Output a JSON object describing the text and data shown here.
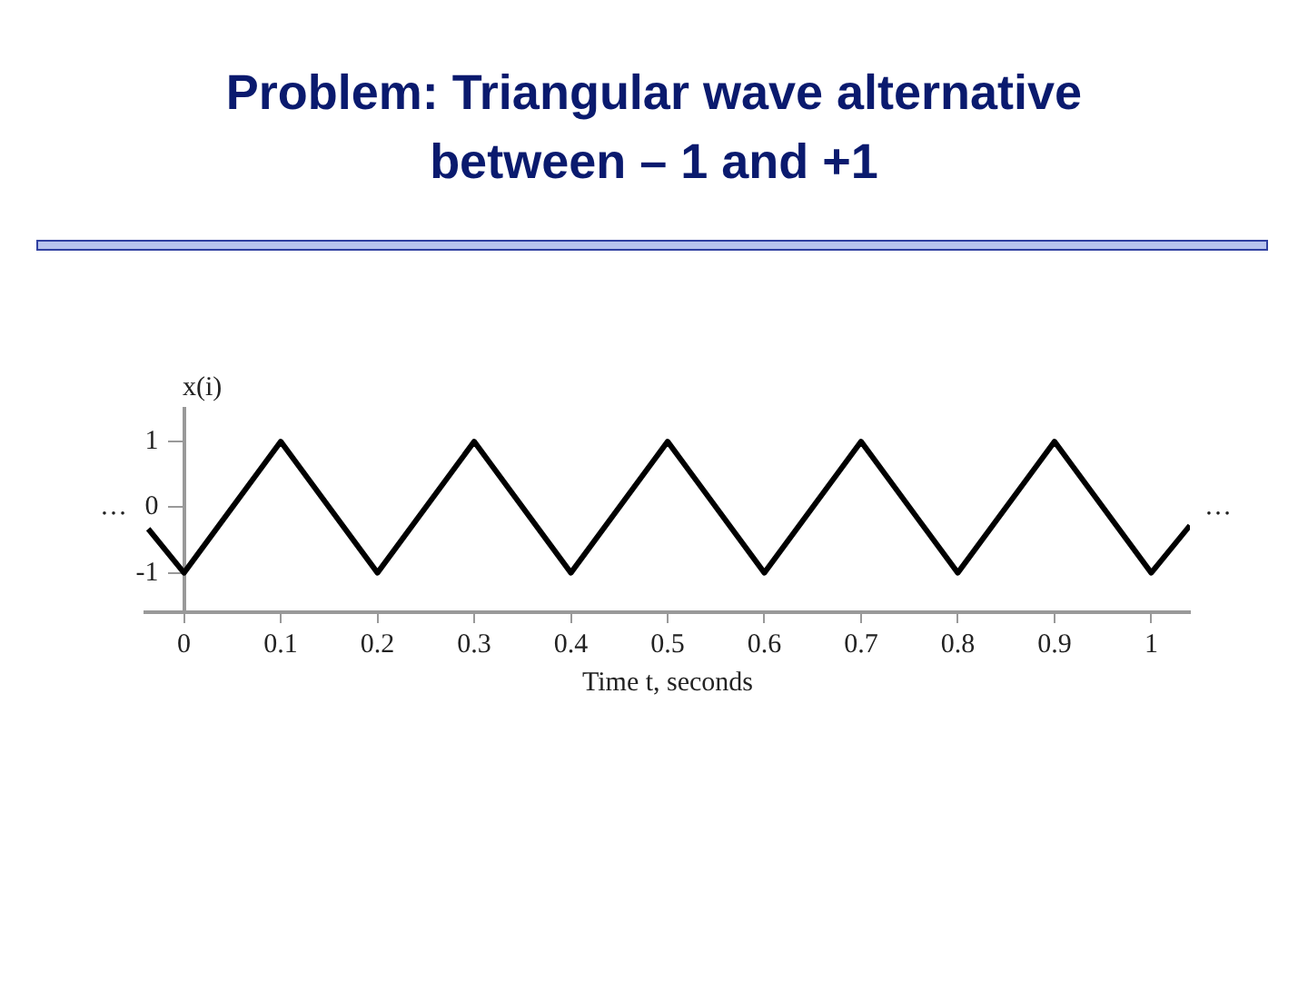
{
  "chart_data": {
    "type": "line",
    "title": "Problem: Triangular wave alternative between – 1 and +1",
    "xlabel": "Time t, seconds",
    "ylabel": "x(i)",
    "x": [
      -0.037,
      0,
      0.1,
      0.2,
      0.3,
      0.4,
      0.5,
      0.6,
      0.7,
      0.8,
      0.9,
      1.0,
      1.04
    ],
    "series": [
      {
        "color": "#000000",
        "values": [
          -0.33,
          -1,
          1,
          -1,
          1,
          -1,
          1,
          -1,
          1,
          -1,
          1,
          -1,
          -0.28
        ]
      }
    ],
    "xlim": [
      -0.04,
      1.04
    ],
    "ylim": [
      -1.6,
      1.5
    ],
    "xticks": [
      0,
      0.1,
      0.2,
      0.3,
      0.4,
      0.5,
      0.6,
      0.7,
      0.8,
      0.9,
      1
    ],
    "yticks": [
      -1,
      0,
      1
    ],
    "annotations": [
      "…",
      "…"
    ],
    "grid": false,
    "legend": false,
    "marker": "none",
    "line_style": "solid"
  }
}
